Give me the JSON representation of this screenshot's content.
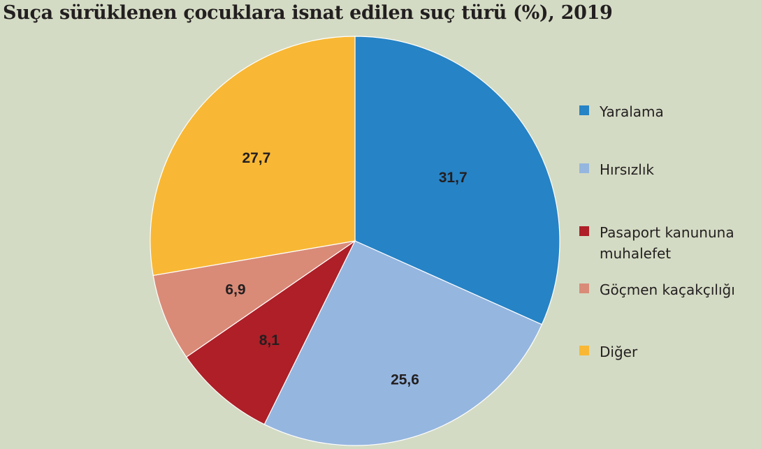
{
  "chart_data": {
    "type": "pie",
    "title": "Suça sürüklenen çocuklara isnat edilen suç türü (%), 2019",
    "legend_position": "right",
    "slices": [
      {
        "label": "Yaralama",
        "value": 31.7,
        "value_label": "31,7",
        "color": "#2683c6"
      },
      {
        "label": "Hırsızlık",
        "value": 25.6,
        "value_label": "25,6",
        "color": "#95b6df"
      },
      {
        "label": "Pasaport kanununa muhalefet",
        "value": 8.1,
        "value_label": "8,1",
        "color": "#ae1f27"
      },
      {
        "label": "Göçmen kaçakçılığı",
        "value": 6.9,
        "value_label": "6,9",
        "color": "#d98b78"
      },
      {
        "label": "Diğer",
        "value": 27.7,
        "value_label": "27,7",
        "color": "#f8b835"
      }
    ]
  }
}
